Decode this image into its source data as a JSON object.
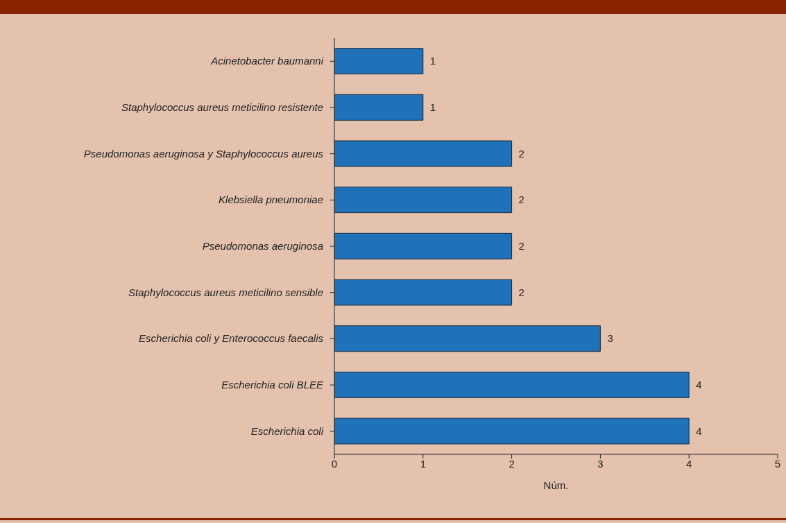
{
  "chart_data": {
    "type": "bar",
    "orientation": "horizontal",
    "xlabel": "Núm.",
    "categories": [
      "Acinetobacter baumanni",
      "Staphylococcus aureus meticilino resistente",
      "Pseudomonas aeruginosa y Staphylococcus aureus",
      "Klebsiella pneumoniae",
      "Pseudomonas aeruginosa",
      "Staphylococcus aureus meticilino sensible",
      "Escherichia coli y Enterococcus faecalis",
      "Escherichia coli BLEE",
      "Escherichia coli"
    ],
    "values": [
      1,
      1,
      2,
      2,
      2,
      2,
      3,
      4,
      4
    ],
    "color": "#1f72b8",
    "xlim": [
      0,
      5
    ],
    "xticks": [
      0,
      1,
      2,
      3,
      4,
      5
    ],
    "data_labels": true,
    "grid": false,
    "legend": false
  }
}
